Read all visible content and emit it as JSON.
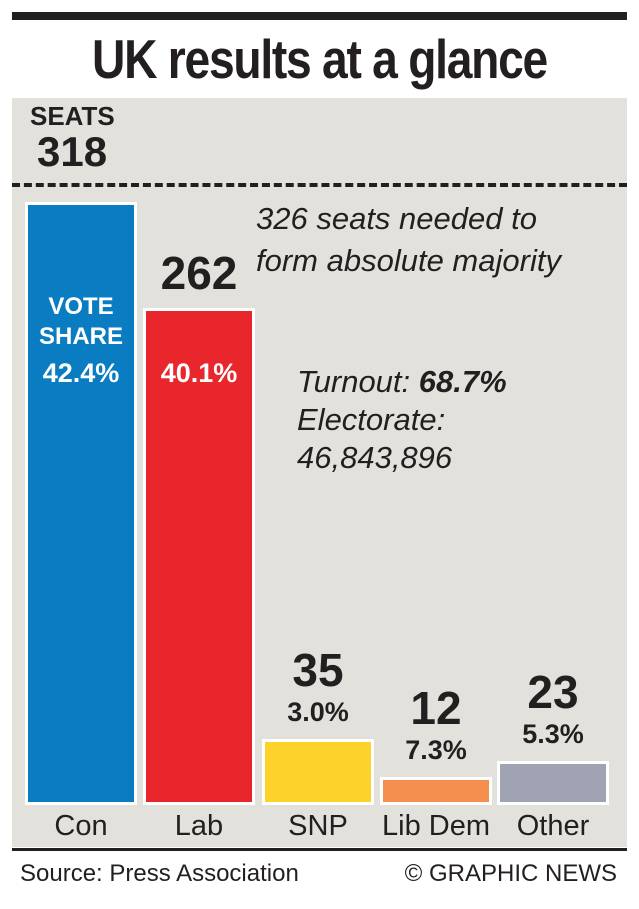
{
  "title": "UK results at a glance",
  "seats_axis_label": "SEATS",
  "majority": {
    "seats": 318,
    "seats_text": "318",
    "line1": "326 seats needed to",
    "line2": "form absolute majority"
  },
  "turnout": {
    "label": "Turnout:",
    "value": "68.7%",
    "electorate_label": "Electorate:",
    "electorate_value": "46,843,896"
  },
  "vote_share_label_line1": "VOTE",
  "vote_share_label_line2": "SHARE",
  "source": "Source: Press Association",
  "credit": "© GRAPHIC NEWS",
  "chart_data": {
    "type": "bar",
    "title": "UK results at a glance",
    "ylabel": "SEATS",
    "ylim": [
      0,
      326
    ],
    "categories": [
      "Con",
      "Lab",
      "SNP",
      "Lib Dem",
      "Other"
    ],
    "values": [
      318,
      262,
      35,
      12,
      23
    ],
    "seat_labels": [
      "",
      "262",
      "35",
      "12",
      "23"
    ],
    "vote_share": [
      "42.4%",
      "40.1%",
      "3.0%",
      "7.3%",
      "5.3%"
    ],
    "colors": [
      "#0a7cc1",
      "#e8262b",
      "#fdd22a",
      "#f58f4f",
      "#9fa3b3"
    ],
    "reference_line": {
      "value": 326,
      "label": "326 seats needed to form absolute majority"
    }
  }
}
